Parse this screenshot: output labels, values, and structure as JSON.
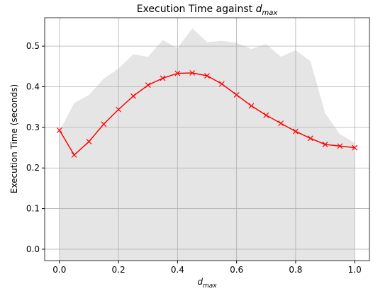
{
  "chart_data": {
    "type": "line",
    "title": {
      "text": "Execution Time against",
      "symbol": "d",
      "subscript": "max"
    },
    "xlabel": {
      "symbol": "d",
      "subscript": "max"
    },
    "ylabel": "Execution Time (seconds)",
    "x": [
      0.0,
      0.05,
      0.1,
      0.15,
      0.2,
      0.25,
      0.3,
      0.35,
      0.4,
      0.45,
      0.5,
      0.55,
      0.6,
      0.65,
      0.7,
      0.75,
      0.8,
      0.85,
      0.9,
      0.95,
      1.0
    ],
    "series": [
      {
        "type": "area",
        "color": "#e5e5e5",
        "values": [
          0.29,
          0.36,
          0.38,
          0.42,
          0.445,
          0.48,
          0.474,
          0.515,
          0.495,
          0.544,
          0.51,
          0.513,
          0.508,
          0.493,
          0.505,
          0.474,
          0.49,
          0.463,
          0.335,
          0.283,
          0.262
        ]
      },
      {
        "type": "line",
        "color": "#ff0000",
        "marker": "x",
        "values": [
          0.293,
          0.232,
          0.265,
          0.308,
          0.344,
          0.377,
          0.404,
          0.421,
          0.433,
          0.434,
          0.427,
          0.407,
          0.38,
          0.353,
          0.33,
          0.31,
          0.29,
          0.273,
          0.258,
          0.254,
          0.25
        ]
      }
    ],
    "xlim": [
      -0.05,
      1.05
    ],
    "ylim": [
      -0.028,
      0.57
    ],
    "xticks": [
      {
        "value": 0,
        "label": "0.0"
      },
      {
        "value": 0.2,
        "label": "0.2"
      },
      {
        "value": 0.4,
        "label": "0.4"
      },
      {
        "value": 0.6,
        "label": "0.6"
      },
      {
        "value": 0.8,
        "label": "0.8"
      },
      {
        "value": 1,
        "label": "1.0"
      }
    ],
    "yticks": [
      {
        "value": 0,
        "label": "0.0"
      },
      0.1,
      0.2,
      0.3,
      0.4,
      0.5
    ],
    "grid": true
  }
}
